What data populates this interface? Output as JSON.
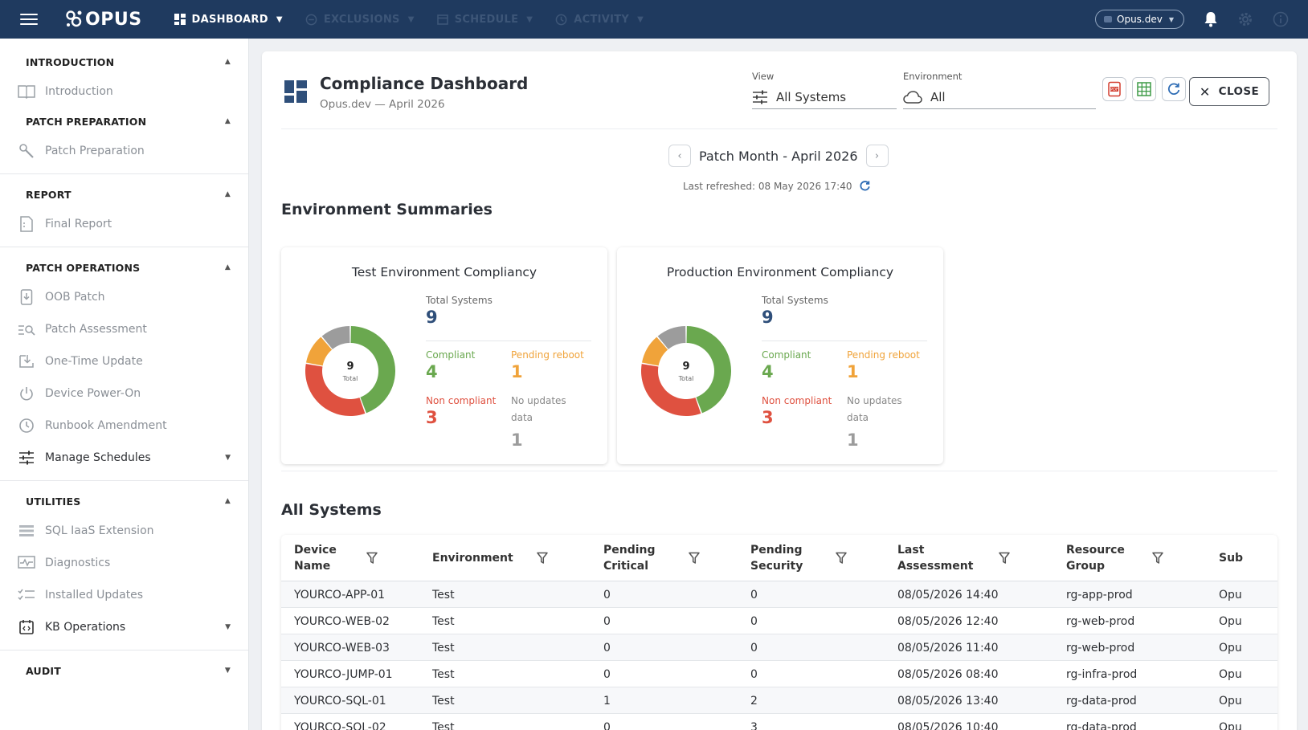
{
  "topbar": {
    "brand": "OPUS",
    "nav": [
      {
        "label": "DASHBOARD"
      },
      {
        "label": "EXCLUSIONS"
      },
      {
        "label": "SCHEDULE"
      },
      {
        "label": "ACTIVITY"
      }
    ],
    "tenant": "Opus.dev"
  },
  "sidebar": {
    "sections": {
      "introduction": {
        "title": "INTRODUCTION",
        "items": [
          "Introduction"
        ]
      },
      "patch_preparation": {
        "title": "PATCH PREPARATION",
        "items": [
          "Patch Preparation"
        ]
      },
      "report": {
        "title": "REPORT",
        "items": [
          "Final Report"
        ]
      },
      "patch_operations": {
        "title": "PATCH OPERATIONS",
        "items": [
          "OOB Patch",
          "Patch Assessment",
          "One-Time Update",
          "Device Power-On",
          "Runbook Amendment",
          "Manage Schedules"
        ]
      },
      "utilities": {
        "title": "UTILITIES",
        "items": [
          "SQL IaaS Extension",
          "Diagnostics",
          "Installed Updates",
          "KB Operations"
        ]
      },
      "audit": {
        "title": "AUDIT"
      }
    }
  },
  "header": {
    "title": "Compliance Dashboard",
    "subtitle": "Opus.dev — April 2026",
    "view_label": "View",
    "view_value": "All Systems",
    "env_label": "Environment",
    "env_value": "All",
    "close_label": "CLOSE"
  },
  "month": {
    "label": "Patch Month - April 2026",
    "refreshed": "Last refreshed: 08 May 2026 17:40"
  },
  "env_section_title": "Environment Summaries",
  "env_cards": [
    {
      "title": "Test Environment Compliancy",
      "total_label": "Total Systems",
      "total": "9",
      "center_num": "9",
      "center_cap": "Total",
      "compliant_label": "Compliant",
      "compliant": "4",
      "pending_label": "Pending reboot",
      "pending": "1",
      "noncompliant_label": "Non compliant",
      "noncompliant": "3",
      "noupdates_label_1": "No updates",
      "noupdates_label_2": "data",
      "noupdates": "1"
    },
    {
      "title": "Production Environment Compliancy",
      "total_label": "Total Systems",
      "total": "9",
      "center_num": "9",
      "center_cap": "Total",
      "compliant_label": "Compliant",
      "compliant": "4",
      "pending_label": "Pending reboot",
      "pending": "1",
      "noncompliant_label": "Non compliant",
      "noncompliant": "3",
      "noupdates_label_1": "No updates",
      "noupdates_label_2": "data",
      "noupdates": "1"
    }
  ],
  "colors": {
    "compliant": "#6aa84f",
    "pending": "#f0a33a",
    "noncompliant": "#df5140",
    "noupdates": "#9c9c9c",
    "total": "#2f4f7a",
    "nav_bg": "#1f3a5f"
  },
  "systems_title": "All Systems",
  "table": {
    "columns": [
      {
        "l1": "Device",
        "l2": "Name"
      },
      {
        "l1": "Environment",
        "l2": ""
      },
      {
        "l1": "Pending",
        "l2": "Critical"
      },
      {
        "l1": "Pending",
        "l2": "Security"
      },
      {
        "l1": "Last",
        "l2": "Assessment"
      },
      {
        "l1": "Resource",
        "l2": "Group"
      },
      {
        "l1": "Sub",
        "l2": ""
      }
    ],
    "rows": [
      [
        "YOURCO-APP-01",
        "Test",
        "0",
        "0",
        "08/05/2026 14:40",
        "rg-app-prod",
        "Opu"
      ],
      [
        "YOURCO-WEB-02",
        "Test",
        "0",
        "0",
        "08/05/2026 12:40",
        "rg-web-prod",
        "Opu"
      ],
      [
        "YOURCO-WEB-03",
        "Test",
        "0",
        "0",
        "08/05/2026 11:40",
        "rg-web-prod",
        "Opu"
      ],
      [
        "YOURCO-JUMP-01",
        "Test",
        "0",
        "0",
        "08/05/2026 08:40",
        "rg-infra-prod",
        "Opu"
      ],
      [
        "YOURCO-SQL-01",
        "Test",
        "1",
        "2",
        "08/05/2026 13:40",
        "rg-data-prod",
        "Opu"
      ],
      [
        "YOURCO-SQL-02",
        "Test",
        "0",
        "3",
        "08/05/2026 10:40",
        "rg-data-prod",
        "Opu"
      ]
    ]
  }
}
